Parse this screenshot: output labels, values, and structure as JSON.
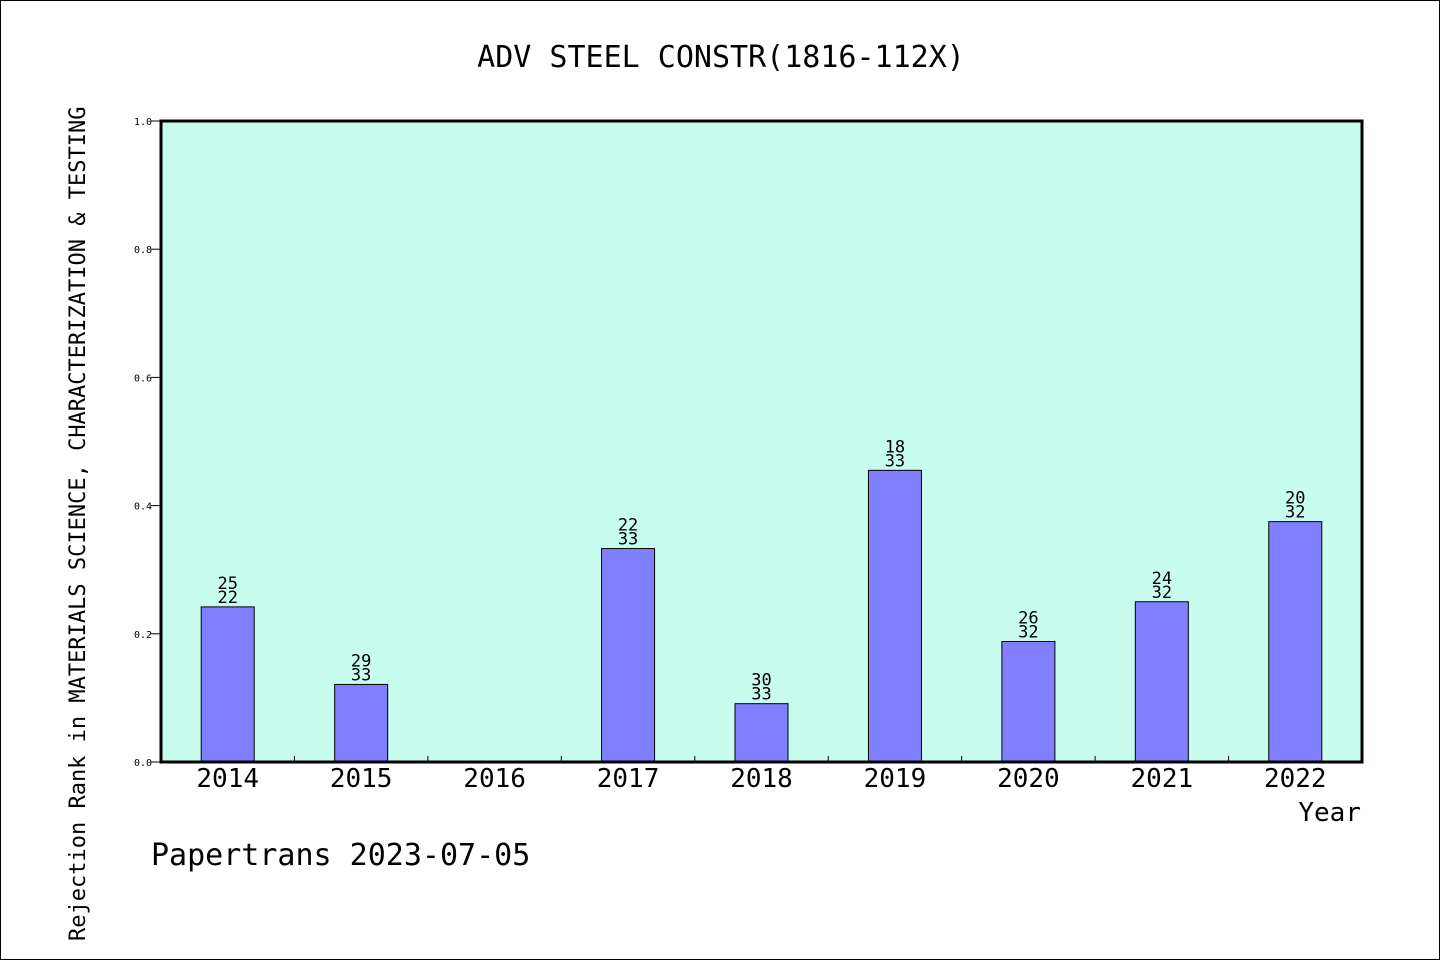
{
  "chart_data": {
    "type": "bar",
    "title": "ADV STEEL CONSTR(1816-112X)",
    "xlabel": "Year",
    "ylabel": "Rejection Rank in MATERIALS SCIENCE, CHARACTERIZATION & TESTING",
    "categories": [
      "2014",
      "2015",
      "2016",
      "2017",
      "2018",
      "2019",
      "2020",
      "2021",
      "2022"
    ],
    "values": [
      0.242,
      0.121,
      null,
      0.333,
      0.091,
      0.455,
      0.188,
      0.25,
      0.375
    ],
    "labels_top": [
      "25",
      "29",
      "",
      "22",
      "30",
      "18",
      "26",
      "24",
      "20"
    ],
    "labels_bottom": [
      "22",
      "33",
      "",
      "33",
      "33",
      "33",
      "32",
      "32",
      "32"
    ],
    "ylim": [
      0,
      1.0
    ],
    "yticks": [
      "0.0",
      "0.2",
      "0.4",
      "0.6",
      "0.8",
      "1.0"
    ],
    "grid": false,
    "colors": {
      "plot_bg": "#c8fcee",
      "bar": "#8080ff"
    }
  },
  "footer": "Papertrans 2023-07-05"
}
